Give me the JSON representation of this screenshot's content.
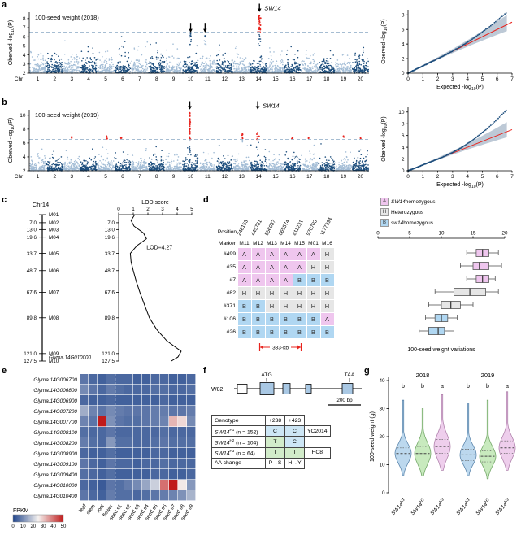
{
  "panel_labels": {
    "a": "a",
    "b": "b",
    "c": "c",
    "d": "d",
    "e": "e",
    "f": "f",
    "g": "g"
  },
  "colors": {
    "chr_light": "#a3bdd6",
    "chr_dark": "#1d4e7d",
    "sig_red": "#e8231d",
    "threshold": "#9ab4cc",
    "qq_point": "#1d4e7d",
    "qq_line": "#e8231d",
    "qq_band": "#bdc9d6",
    "geno_A": "#efc6ee",
    "geno_H": "#e6e6e6",
    "geno_B": "#b0d7f2",
    "violin1": "#bcd8ee",
    "violin2": "#c8eabe",
    "violin3": "#eeceec",
    "violin1s": "#5d87ad",
    "violin2s": "#74a868",
    "violin3s": "#b183ad",
    "allele_C": "#cde6f5",
    "allele_T": "#d2ecca",
    "heat_low": "#20458c",
    "heat_mid": "#f5f2f0",
    "heat_high": "#c01a1a",
    "lod_red": "#e8231d",
    "exon_fill": "#a9c8e4"
  },
  "chart_data": [
    {
      "id": "manhattan_2018",
      "type": "scatter",
      "title": "100-seed weight (2018)",
      "ylabel_parts": {
        "pre": "Oberved -log",
        "sub": "10",
        "post": "(P)"
      },
      "xlabel": "Chr",
      "chromosomes": [
        "1",
        "2",
        "3",
        "4",
        "5",
        "6",
        "7",
        "8",
        "9",
        "10",
        "11",
        "12",
        "13",
        "14",
        "15",
        "16",
        "17",
        "18",
        "19",
        "20"
      ],
      "y_ticks": [
        2,
        3,
        4,
        5,
        6,
        7,
        8
      ],
      "ylim": [
        2,
        8.7
      ],
      "threshold": 6.5,
      "seed": 7,
      "peaks": [
        {
          "chr": 14,
          "rel": 0.55,
          "spread": 0.05,
          "n": 28,
          "vmin": 4.4,
          "vmax": 8.3
        },
        {
          "chr": 10,
          "rel": 0.5,
          "spread": 0.05,
          "n": 8,
          "vmin": 4.4,
          "vmax": 6.3
        },
        {
          "chr": 11,
          "rel": 0.35,
          "spread": 0.05,
          "n": 6,
          "vmin": 4.3,
          "vmax": 6.1
        }
      ],
      "arrows": [
        {
          "chr": 10,
          "rel": 0.5,
          "tip_v": 6.45
        },
        {
          "chr": 11,
          "rel": 0.35,
          "tip_v": 6.45
        }
      ],
      "margin_arrows": [
        {
          "chr": 14,
          "rel": 0.55,
          "label": "SW14"
        }
      ]
    },
    {
      "id": "qq_2018",
      "type": "scatter",
      "xlabel_parts": {
        "pre": "Expected -log",
        "sub": "10",
        "post": "(P)"
      },
      "ylabel_parts": {
        "pre": "Oberved -log",
        "sub": "10",
        "post": "(P)"
      },
      "x_ticks": [
        0,
        1,
        2,
        3,
        4,
        5,
        6,
        7
      ],
      "y_ticks": [
        0,
        2,
        4,
        6,
        8
      ],
      "xlim": [
        0,
        7
      ],
      "ylim": [
        0,
        8.7
      ],
      "bend": 2.4,
      "curve": 0.095,
      "x_max_pt": 6.6,
      "band_u": 0.028,
      "band_l": 0.018,
      "seed": 21
    },
    {
      "id": "manhattan_2019",
      "type": "scatter",
      "title": "100-seed weight (2019)",
      "ylabel_parts": {
        "pre": "Oberved -log",
        "sub": "10",
        "post": "(P)"
      },
      "xlabel": "Chr",
      "chromosomes": [
        "1",
        "2",
        "3",
        "4",
        "5",
        "6",
        "7",
        "8",
        "9",
        "10",
        "11",
        "12",
        "13",
        "14",
        "15",
        "16",
        "17",
        "18",
        "19",
        "20"
      ],
      "y_ticks": [
        2,
        4,
        6,
        8,
        10
      ],
      "ylim": [
        2,
        10.8
      ],
      "threshold": 6.5,
      "seed": 13,
      "peaks": [
        {
          "chr": 10,
          "rel": 0.45,
          "spread": 0.02,
          "n": 34,
          "vmin": 3.0,
          "vmax": 10.35
        },
        {
          "chr": 13,
          "rel": 0.55,
          "spread": 0.05,
          "n": 7,
          "vmin": 5.0,
          "vmax": 7.3
        },
        {
          "chr": 14,
          "rel": 0.45,
          "spread": 0.06,
          "n": 8,
          "vmin": 5.0,
          "vmax": 7.5
        },
        {
          "chr": 3,
          "rel": 0.5,
          "spread": 0.03,
          "n": 2,
          "vmin": 6.6,
          "vmax": 6.9
        },
        {
          "chr": 5,
          "rel": 0.55,
          "spread": 0.04,
          "n": 3,
          "vmin": 6.4,
          "vmax": 7.0
        },
        {
          "chr": 6,
          "rel": 0.4,
          "spread": 0.03,
          "n": 2,
          "vmin": 6.5,
          "vmax": 6.8
        },
        {
          "chr": 16,
          "rel": 0.5,
          "spread": 0.03,
          "n": 2,
          "vmin": 6.5,
          "vmax": 6.8
        },
        {
          "chr": 17,
          "rel": 0.45,
          "spread": 0.03,
          "n": 1,
          "vmin": 6.6,
          "vmax": 6.7
        },
        {
          "chr": 19,
          "rel": 0.5,
          "spread": 0.03,
          "n": 2,
          "vmin": 6.6,
          "vmax": 7.0
        },
        {
          "chr": 20,
          "rel": 0.5,
          "spread": 0.03,
          "n": 1,
          "vmin": 6.6,
          "vmax": 6.7
        }
      ],
      "arrows": [],
      "margin_arrows": [
        {
          "chr": 10,
          "rel": 0.45,
          "label": ""
        },
        {
          "chr": 14,
          "rel": 0.45,
          "label": "SW14"
        }
      ]
    },
    {
      "id": "qq_2019",
      "type": "scatter",
      "xlabel_parts": {
        "pre": "Expected -log",
        "sub": "10",
        "post": "(P)"
      },
      "ylabel_parts": {
        "pre": "Oberved -log",
        "sub": "10",
        "post": "(P)"
      },
      "x_ticks": [
        0,
        1,
        2,
        3,
        4,
        5,
        6,
        7
      ],
      "y_ticks": [
        0,
        2,
        4,
        6,
        8,
        10
      ],
      "xlim": [
        0,
        7
      ],
      "ylim": [
        0,
        10.8
      ],
      "bend": 2.2,
      "curve": 0.19,
      "x_max_pt": 6.6,
      "band_u": 0.035,
      "band_l": 0.02,
      "seed": 22
    },
    {
      "id": "linkage_lod",
      "type": "line",
      "chr_label": "Chr14",
      "axis_title": "LOD score",
      "lod_ticks": [
        0,
        1,
        2,
        3,
        4,
        5
      ],
      "cm_max": 127.5,
      "peak_label": "LOD=4.27",
      "markers": [
        {
          "cm": 0,
          "pos": "",
          "name": "M01"
        },
        {
          "cm": 7.0,
          "pos": "7.0",
          "name": "M02"
        },
        {
          "cm": 13.0,
          "pos": "13.0",
          "name": "M03"
        },
        {
          "cm": 19.6,
          "pos": "19.6",
          "name": "M04"
        },
        {
          "cm": 33.7,
          "pos": "33.7",
          "name": "M05"
        },
        {
          "cm": 48.7,
          "pos": "48.7",
          "name": "M06"
        },
        {
          "cm": 67.6,
          "pos": "67.6",
          "name": "M07"
        },
        {
          "cm": 89.8,
          "pos": "89.8",
          "name": "M08"
        },
        {
          "cm": 121.0,
          "pos": "121.0",
          "name": "M09"
        },
        {
          "cm": 127.5,
          "pos": "127.5",
          "name": "M10"
        }
      ],
      "gene_label": {
        "cm": 124.3,
        "text": "Glyma.14G010000"
      },
      "curve": [
        [
          1.1,
          0
        ],
        [
          0.85,
          5
        ],
        [
          1.05,
          10
        ],
        [
          1.7,
          16
        ],
        [
          1.9,
          21
        ],
        [
          1.25,
          27
        ],
        [
          0.8,
          33.7
        ],
        [
          0.85,
          41
        ],
        [
          1.0,
          48.7
        ],
        [
          1.2,
          58
        ],
        [
          1.45,
          67.6
        ],
        [
          1.75,
          78
        ],
        [
          2.1,
          89.8
        ],
        [
          2.6,
          100
        ],
        [
          3.3,
          110
        ],
        [
          4.27,
          119
        ],
        [
          4.05,
          124
        ],
        [
          3.6,
          127.5
        ]
      ]
    },
    {
      "id": "genotype_table",
      "type": "table",
      "position_label": "Position",
      "marker_label": "Marker",
      "positions": [
        "248155",
        "445731",
        "556037",
        "665574",
        "811231",
        "970703",
        "1177234"
      ],
      "markers": [
        "M11",
        "M12",
        "M13",
        "M14",
        "M15",
        "M01",
        "M16"
      ],
      "rows": [
        {
          "id": "#499",
          "genotypes": [
            "A",
            "A",
            "A",
            "A",
            "A",
            "A",
            "H"
          ]
        },
        {
          "id": "#35",
          "genotypes": [
            "A",
            "A",
            "A",
            "A",
            "A",
            "H",
            "H"
          ]
        },
        {
          "id": "#7",
          "genotypes": [
            "A",
            "A",
            "A",
            "A",
            "B",
            "B",
            "B"
          ]
        },
        {
          "id": "#82",
          "genotypes": [
            "H",
            "H",
            "H",
            "H",
            "H",
            "H",
            "H"
          ]
        },
        {
          "id": "#371",
          "genotypes": [
            "B",
            "B",
            "H",
            "H",
            "H",
            "H",
            "H"
          ]
        },
        {
          "id": "#106",
          "genotypes": [
            "B",
            "B",
            "B",
            "B",
            "B",
            "B",
            "A"
          ]
        },
        {
          "id": "#26",
          "genotypes": [
            "B",
            "B",
            "B",
            "B",
            "B",
            "B",
            "B"
          ]
        }
      ],
      "interval": {
        "label": "383-kb",
        "from_col": 1,
        "to_col": 4
      },
      "legend": [
        {
          "letter": "A",
          "italic": "SW14",
          "rest": " homozygous"
        },
        {
          "letter": "H",
          "italic": "",
          "rest": "Heterozygous"
        },
        {
          "letter": "B",
          "italic": "sw14",
          "rest": " homozygous"
        }
      ]
    },
    {
      "id": "seed_weight_boxplots",
      "type": "boxplot",
      "axis_ticks": [
        0,
        5,
        10,
        15,
        20
      ],
      "xlim": [
        0,
        20
      ],
      "caption": "100-seed weight variations",
      "boxes": [
        {
          "row": "#499",
          "cls": "A",
          "min": 14,
          "q1": 15.5,
          "med": 16.5,
          "q3": 17.5,
          "max": 19
        },
        {
          "row": "#35",
          "cls": "A",
          "min": 13,
          "q1": 15,
          "med": 16,
          "q3": 17.5,
          "max": 19.5
        },
        {
          "row": "#7",
          "cls": "A",
          "min": 14,
          "q1": 15.5,
          "med": 16.5,
          "q3": 17.5,
          "max": 18.5
        },
        {
          "row": "#82",
          "cls": "H",
          "min": 9,
          "q1": 12,
          "med": 14.5,
          "q3": 17,
          "max": 19
        },
        {
          "row": "#371",
          "cls": "H",
          "min": 8,
          "q1": 10,
          "med": 11.5,
          "q3": 13,
          "max": 15
        },
        {
          "row": "#106",
          "cls": "B",
          "min": 7.5,
          "q1": 9,
          "med": 10,
          "q3": 11,
          "max": 12.5
        },
        {
          "row": "#26",
          "cls": "B",
          "min": 6.5,
          "q1": 8,
          "med": 9.5,
          "q3": 10.5,
          "max": 12
        }
      ]
    },
    {
      "id": "expression_heatmap",
      "type": "heatmap",
      "colorbar_label": "FPKM",
      "colorbar_ticks": [
        0,
        10,
        20,
        30,
        40,
        50
      ],
      "vmax": 50,
      "divider_after_col": 4,
      "columns": [
        "leaf",
        "stem",
        "root",
        "flower",
        "seed s1",
        "seed s2",
        "seed s3",
        "seed s4",
        "seed s5",
        "seed s6",
        "seed s7",
        "seed s8",
        "seed s9"
      ],
      "genes": [
        {
          "name": "Glyma.14G006700",
          "highlight": false,
          "values": [
            7,
            5,
            4,
            6,
            5,
            5,
            4,
            4,
            5,
            5,
            4,
            4,
            5
          ]
        },
        {
          "name": "Glyma.14G006800",
          "highlight": false,
          "values": [
            10,
            7,
            5,
            8,
            6,
            5,
            5,
            5,
            6,
            6,
            5,
            5,
            6
          ]
        },
        {
          "name": "Glyma.14G006900",
          "highlight": false,
          "values": [
            5,
            4,
            4,
            5,
            4,
            4,
            4,
            4,
            4,
            5,
            4,
            4,
            4
          ]
        },
        {
          "name": "Glyma.14G007200",
          "highlight": false,
          "values": [
            15,
            9,
            7,
            10,
            8,
            7,
            7,
            7,
            8,
            8,
            7,
            7,
            8
          ]
        },
        {
          "name": "Glyma.14G007700",
          "highlight": false,
          "values": [
            9,
            7,
            50,
            11,
            7,
            6,
            6,
            7,
            8,
            9,
            32,
            28,
            10
          ]
        },
        {
          "name": "Glyma.14G008100",
          "highlight": false,
          "values": [
            6,
            5,
            5,
            7,
            5,
            5,
            5,
            5,
            5,
            6,
            5,
            5,
            5
          ]
        },
        {
          "name": "Glyma.14G008200",
          "highlight": false,
          "values": [
            8,
            6,
            5,
            12,
            6,
            6,
            5,
            5,
            6,
            7,
            6,
            6,
            6
          ]
        },
        {
          "name": "Glyma.14G008900",
          "highlight": false,
          "values": [
            5,
            4,
            4,
            6,
            4,
            4,
            4,
            4,
            5,
            5,
            4,
            4,
            4
          ]
        },
        {
          "name": "Glyma.14G009100",
          "highlight": false,
          "values": [
            7,
            5,
            4,
            7,
            5,
            5,
            4,
            5,
            5,
            6,
            5,
            5,
            5
          ]
        },
        {
          "name": "Glyma.14G009400",
          "highlight": false,
          "values": [
            6,
            5,
            4,
            6,
            4,
            4,
            4,
            4,
            5,
            5,
            4,
            4,
            5
          ]
        },
        {
          "name": "Glyma.14G010000",
          "highlight": true,
          "values": [
            5,
            4,
            3,
            7,
            6,
            8,
            10,
            14,
            20,
            40,
            50,
            26,
            12
          ]
        },
        {
          "name": "Glyma.14G010400",
          "highlight": false,
          "values": [
            7,
            5,
            4,
            8,
            6,
            6,
            5,
            6,
            7,
            8,
            9,
            11,
            16
          ]
        }
      ]
    },
    {
      "id": "gene_model",
      "type": "diagram",
      "accession": "W82",
      "start_codon": "ATG",
      "stop_codon": "TAA",
      "scale_label": "200 bp",
      "line": [
        30,
        192
      ],
      "atg_x": 62,
      "taa_x": 172,
      "boxes": [
        {
          "x": 34,
          "w": 12,
          "h": 11,
          "filled": false
        },
        {
          "x": 62,
          "w": 17,
          "h": 15,
          "filled": true
        },
        {
          "x": 90,
          "w": 9,
          "h": 13,
          "filled": true
        },
        {
          "x": 118,
          "w": 7,
          "h": 11,
          "filled": true
        },
        {
          "x": 163,
          "w": 13,
          "h": 13,
          "filled": true
        }
      ],
      "table": {
        "header": [
          "Genotype",
          "+238",
          "+423"
        ],
        "rows": [
          {
            "base": "SW14",
            "sup": "H1",
            "n": " (n = 152)",
            "a1": "C",
            "a2": "C",
            "note": "YC2014"
          },
          {
            "base": "SW14",
            "sup": "H2",
            "n": " (n = 104)",
            "a1": "T",
            "a2": "C",
            "note": ""
          },
          {
            "base": "SW14",
            "sup": "H3",
            "n": " (n = 64)",
            "a1": "T",
            "a2": "T",
            "note": "HC8"
          }
        ],
        "aa_row": {
          "label": "AA change",
          "a1": "P→S",
          "a2": "H→Y"
        }
      }
    },
    {
      "id": "violin_seed_weight",
      "type": "violin",
      "ylabel": "100-seed weight (g)",
      "y_ticks": [
        0,
        10,
        20,
        30,
        40
      ],
      "ylim": [
        0,
        40
      ],
      "groups": [
        {
          "year": "2018",
          "letters": [
            "b",
            "b",
            "a"
          ]
        },
        {
          "year": "2019",
          "letters": [
            "b",
            "b",
            "a"
          ]
        }
      ],
      "x_labels": [
        {
          "base": "SW14",
          "sup": "H1"
        },
        {
          "base": "SW14",
          "sup": "H2"
        },
        {
          "base": "SW14",
          "sup": "H3"
        }
      ],
      "violins": [
        {
          "group": 0,
          "idx": 0,
          "min": 6,
          "q1": 12,
          "med": 14,
          "q3": 16,
          "max": 33
        },
        {
          "group": 0,
          "idx": 1,
          "min": 6,
          "q1": 12,
          "med": 14,
          "q3": 16.5,
          "max": 30
        },
        {
          "group": 0,
          "idx": 2,
          "min": 8,
          "q1": 14,
          "med": 16.5,
          "q3": 19,
          "max": 35
        },
        {
          "group": 1,
          "idx": 0,
          "min": 6,
          "q1": 11.5,
          "med": 13.5,
          "q3": 15.5,
          "max": 32
        },
        {
          "group": 1,
          "idx": 1,
          "min": 5,
          "q1": 11,
          "med": 13,
          "q3": 15,
          "max": 33
        },
        {
          "group": 1,
          "idx": 2,
          "min": 8,
          "q1": 14,
          "med": 16,
          "q3": 18.5,
          "max": 36
        }
      ]
    }
  ]
}
